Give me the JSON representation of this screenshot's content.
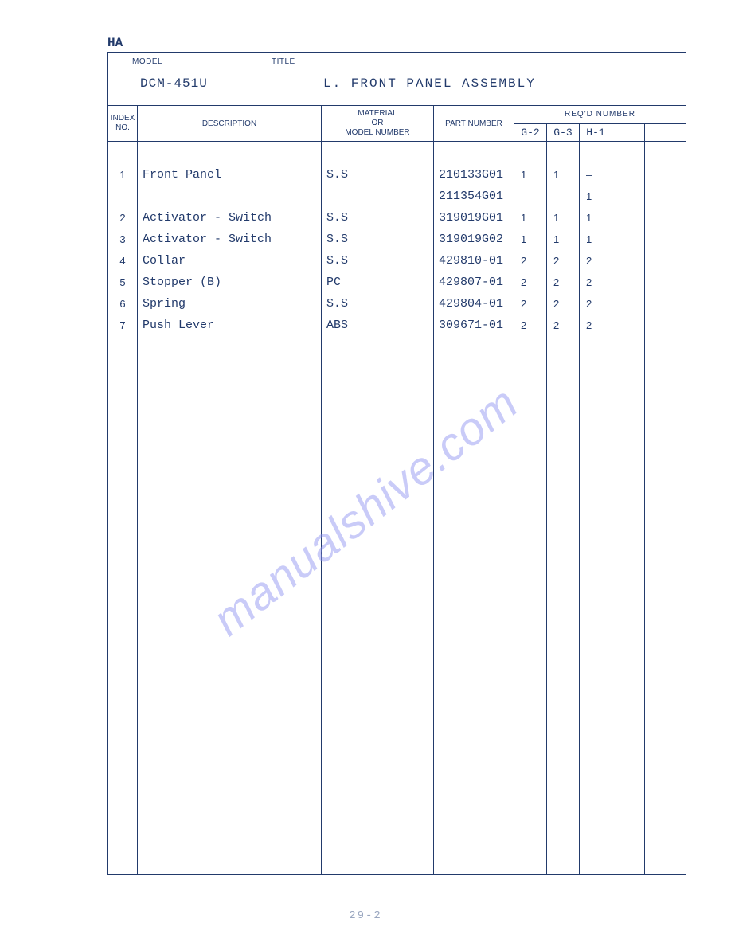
{
  "corner_label": "HA",
  "header": {
    "model_label": "MODEL",
    "title_label": "TITLE",
    "model_value": "DCM-451U",
    "title_value": "L. FRONT PANEL ASSEMBLY"
  },
  "columns": {
    "index_l1": "INDEX",
    "index_l2": "NO.",
    "description": "DESCRIPTION",
    "material_l1": "MATERIAL",
    "material_l2": "OR",
    "material_l3": "MODEL  NUMBER",
    "part_number": "PART NUMBER",
    "reqd_number": "REQ'D  NUMBER",
    "req_sub": {
      "c1": "G-2",
      "c2": "G-3",
      "c3": "H-1",
      "c4": "",
      "c5": ""
    }
  },
  "rows": [
    {
      "index": "1",
      "desc": "Front Panel",
      "mat": "S.S",
      "part": "210133G01",
      "r1": "1",
      "r2": "1",
      "r3": "–"
    },
    {
      "index": "",
      "desc": "",
      "mat": "",
      "part": "211354G01",
      "r1": "",
      "r2": "",
      "r3": "1"
    },
    {
      "index": "2",
      "desc": "Activator - Switch",
      "mat": "S.S",
      "part": "319019G01",
      "r1": "1",
      "r2": "1",
      "r3": "1"
    },
    {
      "index": "3",
      "desc": "Activator - Switch",
      "mat": "S.S",
      "part": "319019G02",
      "r1": "1",
      "r2": "1",
      "r3": "1"
    },
    {
      "index": "4",
      "desc": "Collar",
      "mat": "S.S",
      "part": "429810-01",
      "r1": "2",
      "r2": "2",
      "r3": "2"
    },
    {
      "index": "5",
      "desc": "Stopper (B)",
      "mat": "PC",
      "part": "429807-01",
      "r1": "2",
      "r2": "2",
      "r3": "2"
    },
    {
      "index": "6",
      "desc": "Spring",
      "mat": "S.S",
      "part": "429804-01",
      "r1": "2",
      "r2": "2",
      "r3": "2"
    },
    {
      "index": "7",
      "desc": "Push Lever",
      "mat": "ABS",
      "part": "309671-01",
      "r1": "2",
      "r2": "2",
      "r3": "2"
    }
  ],
  "watermark": "manualshive.com",
  "page_number": "29-2",
  "colors": {
    "ink": "#223a6b",
    "watermark": "#8a8ef0",
    "background": "#ffffff"
  }
}
